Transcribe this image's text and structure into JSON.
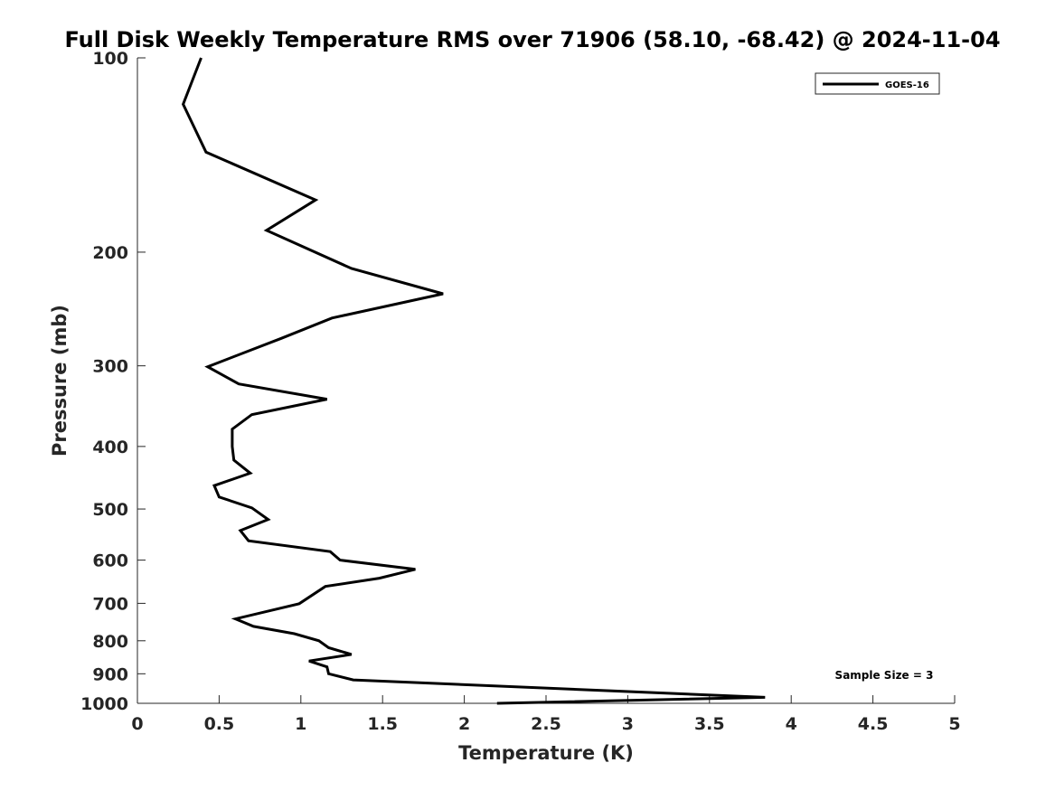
{
  "chart_data": {
    "type": "line",
    "title": "Full Disk Weekly Temperature RMS over 71906 (58.10, -68.42) @ 2024-11-04",
    "xlabel": "Temperature (K)",
    "ylabel": "Pressure (mb)",
    "xlim": [
      0,
      5
    ],
    "ylim": [
      100,
      1000
    ],
    "y_scale": "log",
    "y_reversed": true,
    "xticks": [
      0,
      0.5,
      1,
      1.5,
      2,
      2.5,
      3,
      3.5,
      4,
      4.5,
      5
    ],
    "xtick_labels": [
      "0",
      "0.5",
      "1",
      "1.5",
      "2",
      "2.5",
      "3",
      "3.5",
      "4",
      "4.5",
      "5"
    ],
    "yticks": [
      100,
      200,
      300,
      400,
      500,
      600,
      700,
      800,
      900,
      1000
    ],
    "ytick_labels": [
      "100",
      "200",
      "300",
      "400",
      "500",
      "600",
      "700",
      "800",
      "900",
      "1000"
    ],
    "grid": false,
    "legend_position": "top-right",
    "annotation": "Sample Size = 3",
    "series": [
      {
        "name": "GOES-16",
        "color": "#000000",
        "points": [
          [
            0.39,
            100
          ],
          [
            0.28,
            118
          ],
          [
            0.42,
            140
          ],
          [
            1.09,
            166
          ],
          [
            0.79,
            185
          ],
          [
            1.31,
            212
          ],
          [
            1.87,
            232
          ],
          [
            1.19,
            253
          ],
          [
            0.88,
            272
          ],
          [
            0.43,
            301
          ],
          [
            0.62,
            320
          ],
          [
            1.16,
            338
          ],
          [
            0.7,
            357
          ],
          [
            0.58,
            376
          ],
          [
            0.58,
            400
          ],
          [
            0.59,
            420
          ],
          [
            0.69,
            440
          ],
          [
            0.47,
            460
          ],
          [
            0.5,
            479
          ],
          [
            0.7,
            498
          ],
          [
            0.8,
            519
          ],
          [
            0.63,
            540
          ],
          [
            0.68,
            560
          ],
          [
            1.18,
            582
          ],
          [
            1.24,
            600
          ],
          [
            1.7,
            620
          ],
          [
            1.48,
            640
          ],
          [
            1.15,
            659
          ],
          [
            0.99,
            701
          ],
          [
            0.6,
            740
          ],
          [
            0.71,
            760
          ],
          [
            0.96,
            780
          ],
          [
            1.11,
            800
          ],
          [
            1.17,
            820
          ],
          [
            1.31,
            840
          ],
          [
            1.05,
            860
          ],
          [
            1.16,
            878
          ],
          [
            1.17,
            900
          ],
          [
            1.32,
            920
          ],
          [
            3.84,
            979
          ],
          [
            2.2,
            1000
          ]
        ]
      }
    ]
  }
}
